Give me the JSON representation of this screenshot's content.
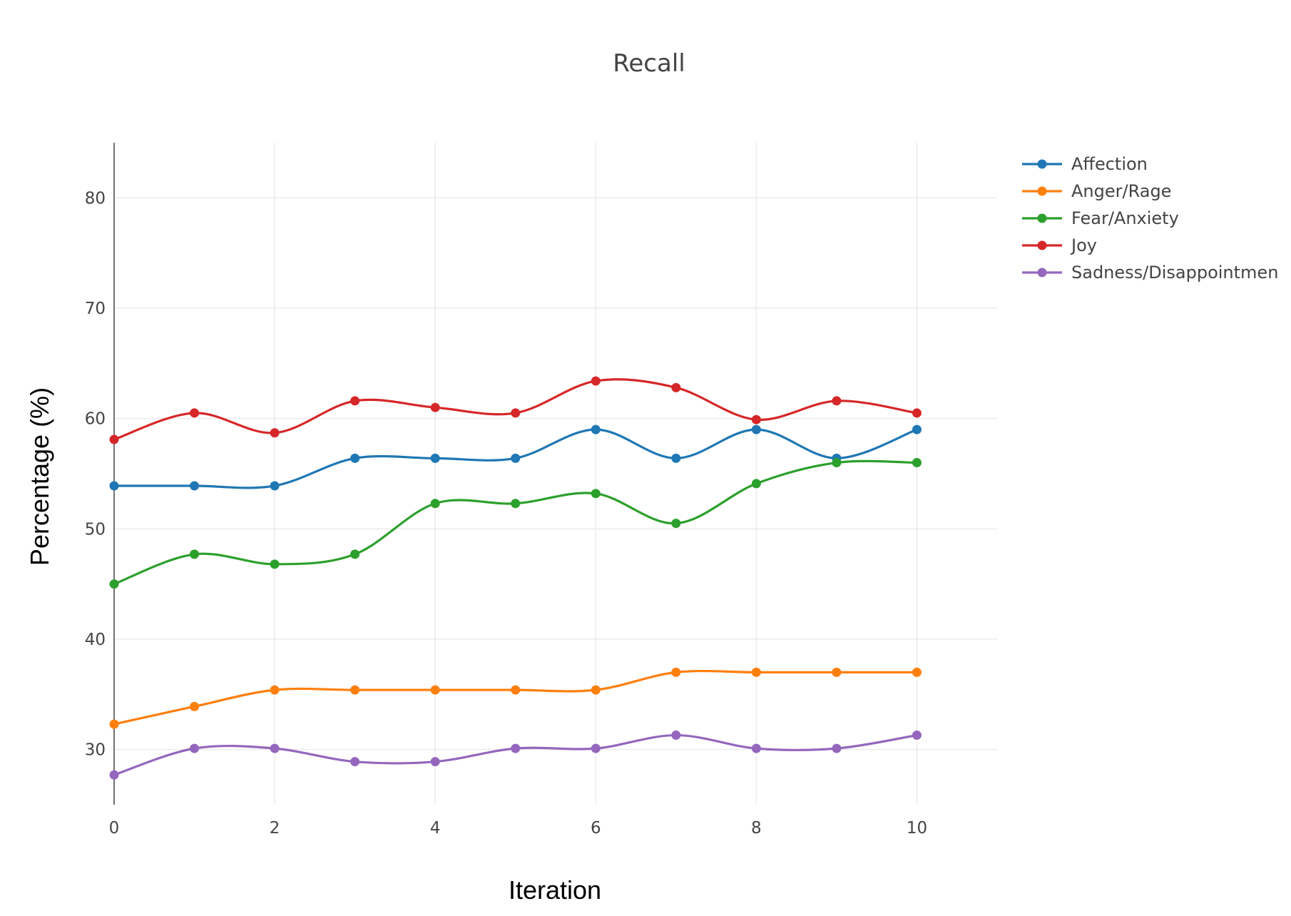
{
  "chart_data": {
    "type": "line",
    "title": "Recall",
    "xlabel": "Iteration",
    "ylabel": "Percentage (%)",
    "x": [
      0,
      1,
      2,
      3,
      4,
      5,
      6,
      7,
      8,
      9,
      10
    ],
    "xlim": [
      0,
      11
    ],
    "ylim": [
      25,
      85
    ],
    "xticks": [
      "0",
      "2",
      "4",
      "6",
      "8",
      "10"
    ],
    "yticks": [
      "30",
      "40",
      "50",
      "60",
      "70",
      "80"
    ],
    "grid": true,
    "legend_position": "top-right",
    "series": [
      {
        "name": "Affection",
        "color": "#1f77b4",
        "values": [
          53.9,
          53.9,
          53.9,
          56.4,
          56.4,
          56.4,
          59.0,
          56.4,
          59.0,
          56.4,
          59.0
        ]
      },
      {
        "name": "Anger/Rage",
        "color": "#ff7f0e",
        "values": [
          32.3,
          33.9,
          35.4,
          35.4,
          35.4,
          35.4,
          35.4,
          37.0,
          37.0,
          37.0,
          37.0
        ]
      },
      {
        "name": "Fear/Anxiety",
        "color": "#2ca02c",
        "values": [
          45.0,
          47.7,
          46.8,
          47.7,
          52.3,
          52.3,
          53.2,
          50.5,
          54.1,
          56.0,
          56.0
        ]
      },
      {
        "name": "Joy",
        "color": "#d62728",
        "values": [
          58.1,
          60.5,
          58.7,
          61.6,
          61.0,
          60.5,
          63.4,
          62.8,
          59.9,
          61.6,
          60.5
        ]
      },
      {
        "name": "Sadness/Disappointmen",
        "color": "#9467bd",
        "values": [
          27.7,
          30.1,
          30.1,
          28.9,
          28.9,
          30.1,
          30.1,
          31.3,
          30.1,
          30.1,
          31.3
        ]
      }
    ]
  }
}
